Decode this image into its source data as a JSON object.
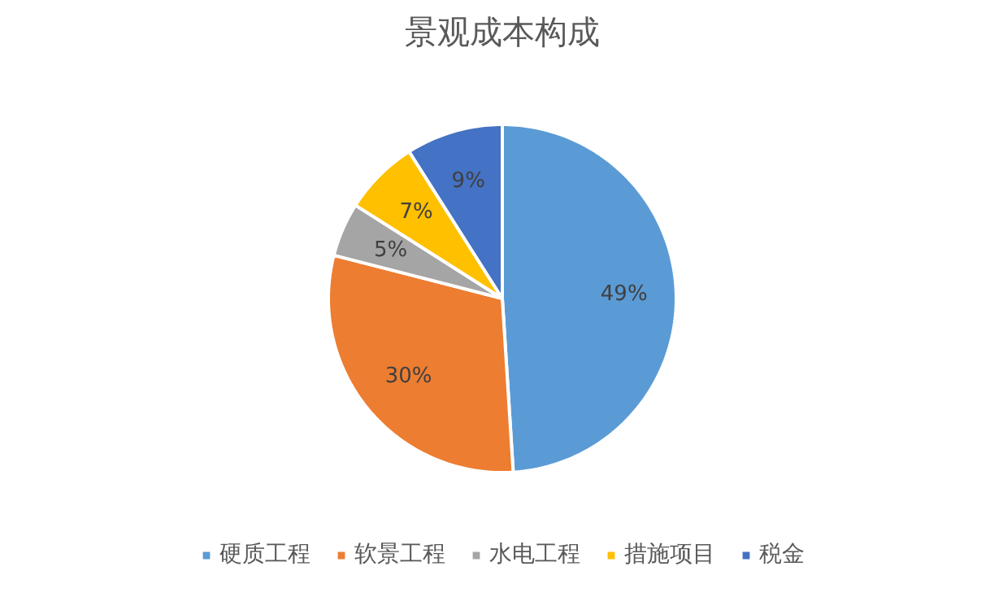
{
  "chart_data": {
    "type": "pie",
    "title": "景观成本构成",
    "categories": [
      "硬质工程",
      "软景工程",
      "水电工程",
      "措施项目",
      "税金"
    ],
    "values": [
      49,
      30,
      5,
      7,
      9
    ],
    "colors": [
      "#5b9bd5",
      "#ed7d31",
      "#a5a5a5",
      "#ffc000",
      "#4472c4"
    ],
    "value_labels": [
      "49%",
      "30%",
      "5%",
      "7%",
      "9%"
    ],
    "legend": "bottom"
  }
}
